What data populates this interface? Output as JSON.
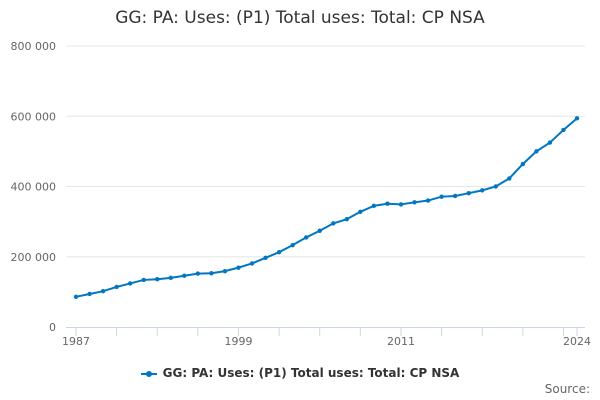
{
  "title": "GG: PA: Uses: (P1) Total uses: Total: CP NSA",
  "source_label": "Source:",
  "chart_data": {
    "type": "line",
    "title": "GG: PA: Uses: (P1) Total uses: Total: CP NSA",
    "xlabel": "",
    "ylabel": "",
    "x": [
      1987,
      1988,
      1989,
      1990,
      1991,
      1992,
      1993,
      1994,
      1995,
      1996,
      1997,
      1998,
      1999,
      2000,
      2001,
      2002,
      2003,
      2004,
      2005,
      2006,
      2007,
      2008,
      2009,
      2010,
      2011,
      2012,
      2013,
      2014,
      2015,
      2016,
      2017,
      2018,
      2019,
      2020,
      2021,
      2022,
      2023,
      2024
    ],
    "series": [
      {
        "name": "GG: PA: Uses: (P1) Total uses: Total: CP NSA",
        "color": "#0077c0",
        "values": [
          86000,
          94000,
          102000,
          114000,
          124000,
          134000,
          136000,
          140000,
          146000,
          152000,
          153000,
          159000,
          169000,
          181000,
          197000,
          213000,
          233000,
          255000,
          274000,
          295000,
          307000,
          328000,
          345000,
          351000,
          349000,
          355000,
          360000,
          371000,
          373000,
          381000,
          389000,
          400000,
          423000,
          464000,
          500000,
          525000,
          561000,
          594000
        ]
      }
    ],
    "ylim": [
      0,
      800000
    ],
    "yticks": [
      0,
      200000,
      400000,
      600000,
      800000
    ],
    "ytick_labels": [
      "0",
      "200 000",
      "400 000",
      "600 000",
      "800 000"
    ],
    "xtick_labels": [
      "1987",
      "1999",
      "2011",
      "2024"
    ],
    "xtick_label_years": [
      1987,
      1999,
      2011,
      2024
    ],
    "grid": true,
    "legend_position": "bottom"
  }
}
